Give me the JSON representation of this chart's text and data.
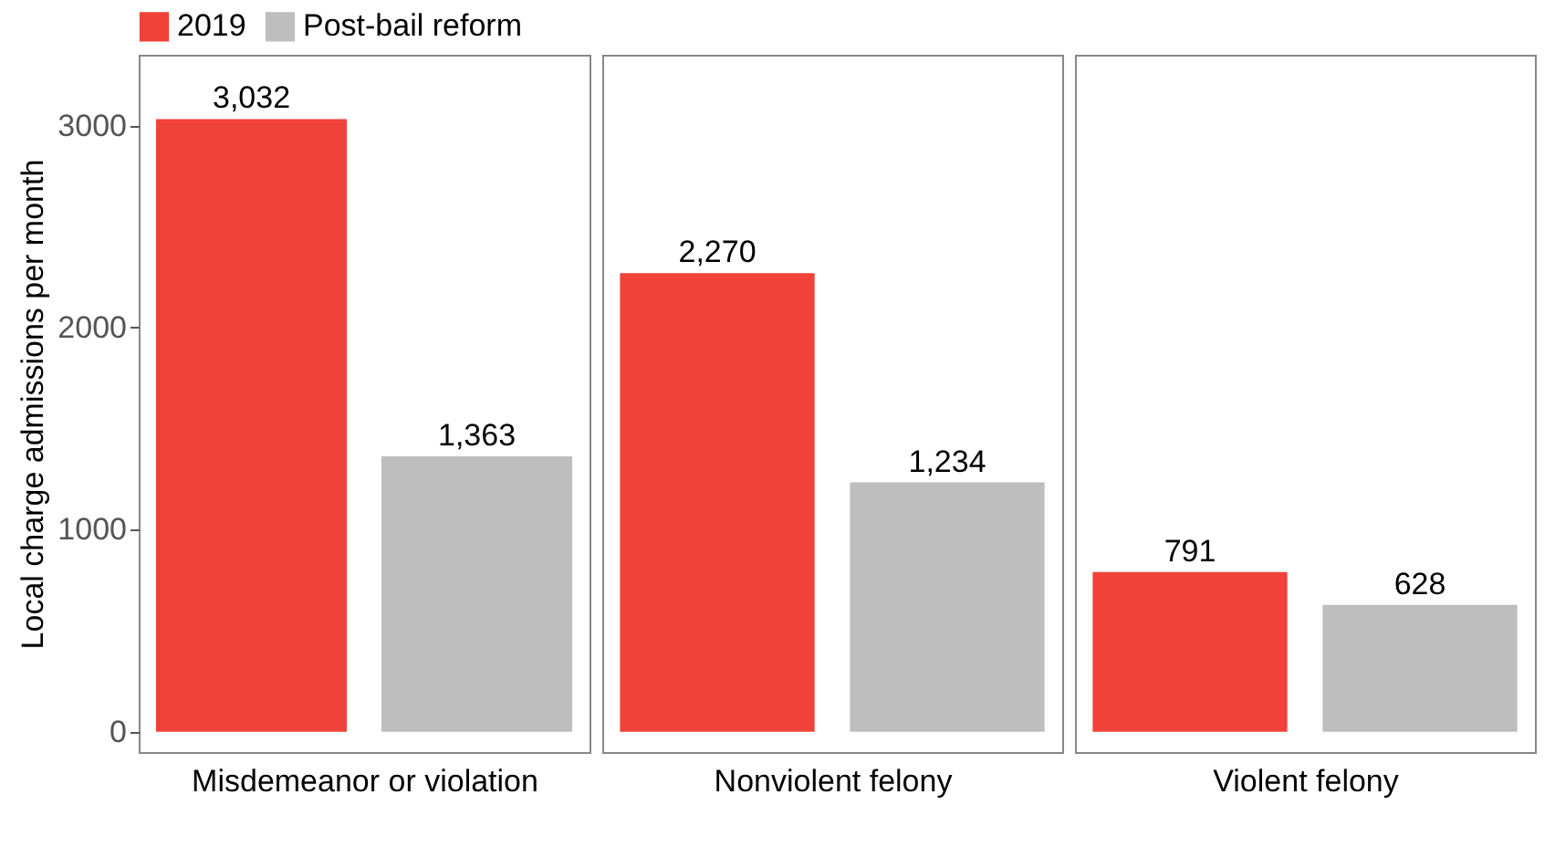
{
  "chart_data": {
    "type": "bar",
    "ylabel": "Local charge admissions per month",
    "categories": [
      "Misdemeanor or violation",
      "Nonviolent felony",
      "Violent felony"
    ],
    "series": [
      {
        "name": "2019",
        "color": "#f04238",
        "values": [
          3032,
          2270,
          791
        ],
        "value_labels": [
          "3,032",
          "2,270",
          "791"
        ]
      },
      {
        "name": "Post-bail reform",
        "color": "#bebebe",
        "values": [
          1363,
          1234,
          628
        ],
        "value_labels": [
          "1,363",
          "1,234",
          "628"
        ]
      }
    ],
    "ylim": [
      -100,
      3350
    ],
    "yticks": [
      0,
      1000,
      2000,
      3000
    ],
    "grid": false,
    "legend": "top left"
  }
}
